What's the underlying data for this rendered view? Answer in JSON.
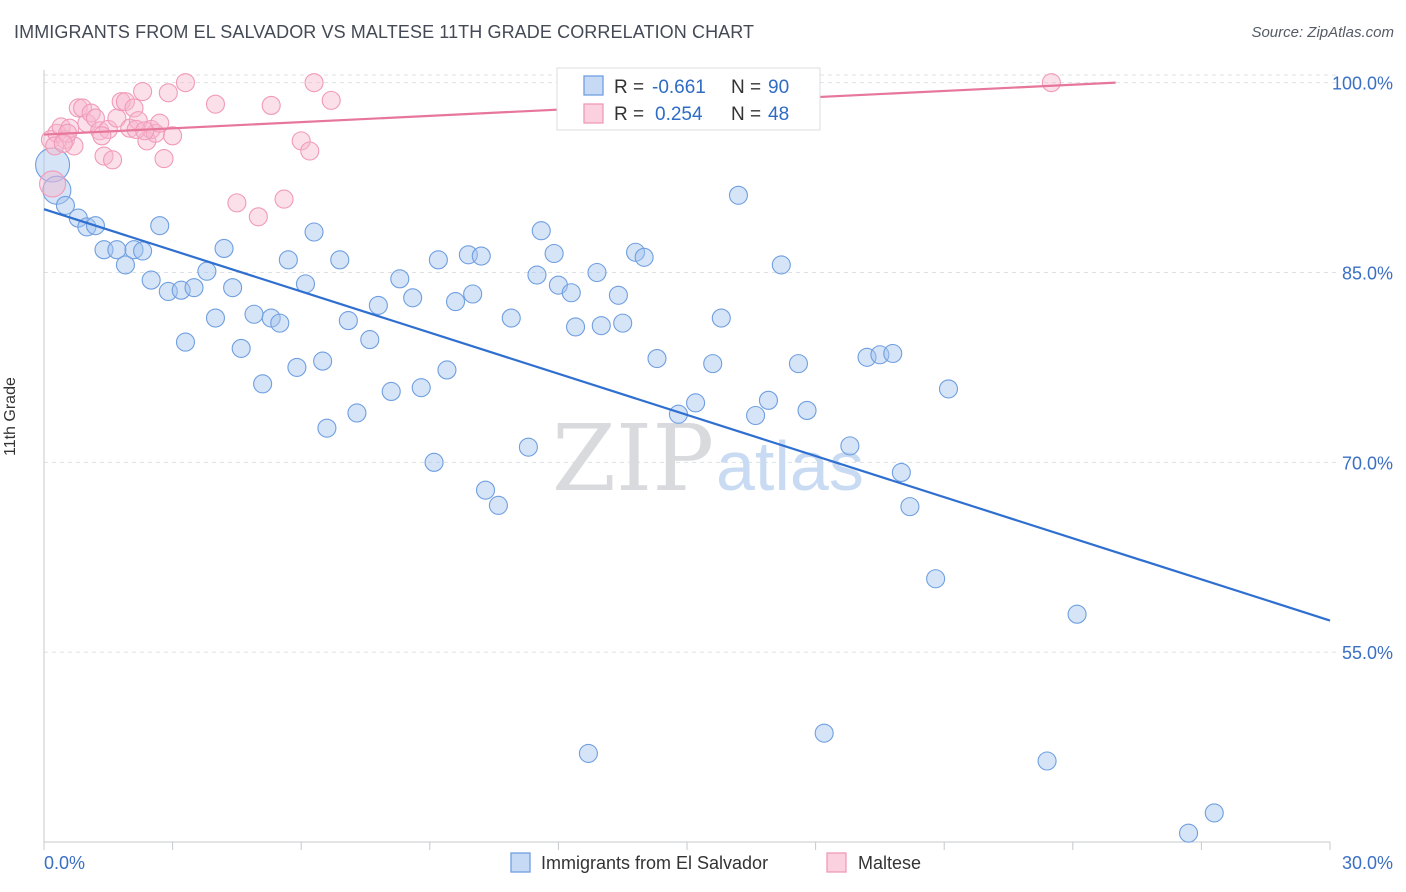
{
  "title": "IMMIGRANTS FROM EL SALVADOR VS MALTESE 11TH GRADE CORRELATION CHART",
  "source": "Source: ZipAtlas.com",
  "watermark": {
    "zip": "ZIP",
    "atlas": "atlas"
  },
  "colors": {
    "blue": "#6f9fe0",
    "blue_line": "#2f6fd0",
    "pink": "#f19ab8",
    "pink_line": "#e7769b",
    "tick": "#3a6fc4",
    "grid": "#dde1e6"
  },
  "legend": {
    "r_label": "R =",
    "n_label": "N =",
    "rows": [
      {
        "r": "-0.661",
        "n": "90"
      },
      {
        "r": "0.254",
        "n": "48"
      }
    ]
  },
  "chart_data": {
    "type": "scatter",
    "title": "IMMIGRANTS FROM EL SALVADOR VS MALTESE 11TH GRADE CORRELATION CHART",
    "xlabel": "",
    "ylabel": "11th Grade",
    "xlim": [
      0,
      30
    ],
    "ylim": [
      40,
      101
    ],
    "x_tick_labels": [
      "0.0%",
      "30.0%"
    ],
    "y_ticks": [
      55,
      70,
      85,
      100
    ],
    "y_tick_labels": [
      "55.0%",
      "70.0%",
      "85.0%",
      "100.0%"
    ],
    "grid": true,
    "legend_position": "top-center",
    "series": [
      {
        "name": "Immigrants from El Salvador",
        "color": "#6f9fe0",
        "trend": {
          "x0": 0,
          "y0": 90.0,
          "x1": 30,
          "y1": 57.5
        },
        "points": [
          [
            0.2,
            93.5
          ],
          [
            0.3,
            91.5
          ],
          [
            0.5,
            90.3
          ],
          [
            0.8,
            89.3
          ],
          [
            1.0,
            88.6
          ],
          [
            1.2,
            88.7
          ],
          [
            1.4,
            86.8
          ],
          [
            1.7,
            86.8
          ],
          [
            1.9,
            85.6
          ],
          [
            2.1,
            86.8
          ],
          [
            2.3,
            86.7
          ],
          [
            2.5,
            84.4
          ],
          [
            2.7,
            88.7
          ],
          [
            2.9,
            83.5
          ],
          [
            3.2,
            83.6
          ],
          [
            3.3,
            79.5
          ],
          [
            3.5,
            83.8
          ],
          [
            3.8,
            85.1
          ],
          [
            4.0,
            81.4
          ],
          [
            4.2,
            86.9
          ],
          [
            4.4,
            83.8
          ],
          [
            4.6,
            79.0
          ],
          [
            4.9,
            81.7
          ],
          [
            5.1,
            76.2
          ],
          [
            5.3,
            81.4
          ],
          [
            5.5,
            81.0
          ],
          [
            5.7,
            86.0
          ],
          [
            5.9,
            77.5
          ],
          [
            6.1,
            84.1
          ],
          [
            6.3,
            88.2
          ],
          [
            6.5,
            78.0
          ],
          [
            6.6,
            72.7
          ],
          [
            6.9,
            86.0
          ],
          [
            7.1,
            81.2
          ],
          [
            7.3,
            73.9
          ],
          [
            7.6,
            79.7
          ],
          [
            7.8,
            82.4
          ],
          [
            8.1,
            75.6
          ],
          [
            8.3,
            84.5
          ],
          [
            8.6,
            83.0
          ],
          [
            8.8,
            75.9
          ],
          [
            9.1,
            70.0
          ],
          [
            9.2,
            86.0
          ],
          [
            9.4,
            77.3
          ],
          [
            9.6,
            82.7
          ],
          [
            9.9,
            86.4
          ],
          [
            10.0,
            83.3
          ],
          [
            10.2,
            86.3
          ],
          [
            10.3,
            67.8
          ],
          [
            10.6,
            66.6
          ],
          [
            10.9,
            81.4
          ],
          [
            11.3,
            71.2
          ],
          [
            11.5,
            84.8
          ],
          [
            11.6,
            88.3
          ],
          [
            11.9,
            86.5
          ],
          [
            12.0,
            84.0
          ],
          [
            12.3,
            83.4
          ],
          [
            12.4,
            80.7
          ],
          [
            12.7,
            47.0
          ],
          [
            12.9,
            85.0
          ],
          [
            13.0,
            80.8
          ],
          [
            13.4,
            83.2
          ],
          [
            13.5,
            81.0
          ],
          [
            13.8,
            86.6
          ],
          [
            14.0,
            86.2
          ],
          [
            14.3,
            78.2
          ],
          [
            14.8,
            73.8
          ],
          [
            15.2,
            74.7
          ],
          [
            15.6,
            77.8
          ],
          [
            15.8,
            81.4
          ],
          [
            16.2,
            91.1
          ],
          [
            16.6,
            73.7
          ],
          [
            16.9,
            74.9
          ],
          [
            17.2,
            85.6
          ],
          [
            17.6,
            77.8
          ],
          [
            17.8,
            74.1
          ],
          [
            18.2,
            48.6
          ],
          [
            18.8,
            71.3
          ],
          [
            19.2,
            78.3
          ],
          [
            19.5,
            78.5
          ],
          [
            19.8,
            78.6
          ],
          [
            20.0,
            69.2
          ],
          [
            20.2,
            66.5
          ],
          [
            20.8,
            60.8
          ],
          [
            21.1,
            75.8
          ],
          [
            23.4,
            46.4
          ],
          [
            24.1,
            58.0
          ],
          [
            26.7,
            40.7
          ],
          [
            27.3,
            42.3
          ]
        ]
      },
      {
        "name": "Maltese",
        "color": "#f19ab8",
        "trend": {
          "x0": 0,
          "y0": 95.9,
          "x1": 25.0,
          "y1": 100.0
        },
        "points": [
          [
            0.15,
            95.5
          ],
          [
            0.2,
            92.0
          ],
          [
            0.3,
            96.0
          ],
          [
            0.4,
            96.5
          ],
          [
            0.5,
            95.5
          ],
          [
            0.6,
            96.4
          ],
          [
            0.7,
            95.0
          ],
          [
            0.8,
            98.0
          ],
          [
            0.9,
            98.0
          ],
          [
            1.0,
            96.8
          ],
          [
            1.1,
            97.6
          ],
          [
            1.2,
            97.2
          ],
          [
            1.3,
            96.2
          ],
          [
            1.4,
            94.2
          ],
          [
            1.5,
            96.3
          ],
          [
            1.6,
            93.9
          ],
          [
            1.7,
            97.2
          ],
          [
            1.8,
            98.5
          ],
          [
            1.9,
            98.5
          ],
          [
            2.0,
            96.4
          ],
          [
            2.1,
            98.0
          ],
          [
            2.2,
            97.0
          ],
          [
            2.3,
            99.3
          ],
          [
            2.4,
            95.4
          ],
          [
            2.5,
            96.3
          ],
          [
            2.6,
            96.0
          ],
          [
            2.7,
            96.8
          ],
          [
            2.8,
            94.0
          ],
          [
            2.9,
            99.2
          ],
          [
            3.0,
            95.8
          ],
          [
            3.3,
            100.0
          ],
          [
            4.0,
            98.3
          ],
          [
            4.5,
            90.5
          ],
          [
            5.0,
            89.4
          ],
          [
            5.3,
            98.2
          ],
          [
            5.6,
            90.8
          ],
          [
            6.0,
            95.4
          ],
          [
            6.2,
            94.6
          ],
          [
            6.3,
            100.0
          ],
          [
            6.7,
            98.6
          ],
          [
            14.2,
            100.0
          ],
          [
            23.5,
            100.0
          ],
          [
            0.25,
            95.0
          ],
          [
            0.55,
            96.0
          ],
          [
            1.35,
            95.8
          ],
          [
            2.15,
            96.3
          ],
          [
            2.35,
            96.2
          ],
          [
            0.45,
            95.2
          ]
        ]
      }
    ]
  }
}
